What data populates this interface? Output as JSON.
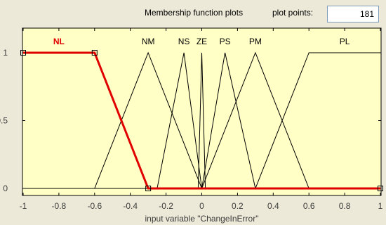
{
  "header": {
    "title": "Membership function plots",
    "plot_points_label": "plot points:",
    "plot_points_value": "181"
  },
  "colors": {
    "plot_bg": "#ffffc6",
    "line": "#000000",
    "selected": "#e00000",
    "window_bg": "#ece9d8"
  },
  "chart_data": {
    "type": "line",
    "xlabel": "input variable \"ChangeInError\"",
    "xlim": [
      -1,
      1
    ],
    "ylim": [
      0,
      1
    ],
    "x_ticks": [
      "-1",
      "-0.8",
      "-0.6",
      "-0.4",
      "-0.2",
      "0",
      "0.2",
      "0.4",
      "0.6",
      "0.8",
      "1"
    ],
    "y_ticks": [
      "0",
      "0.5",
      "1"
    ],
    "selected": "NL",
    "series": [
      {
        "name": "NL",
        "x": [
          -1,
          -0.6,
          -0.3,
          1
        ],
        "y": [
          1,
          1,
          0,
          0
        ]
      },
      {
        "name": "NM",
        "x": [
          -1,
          -0.6,
          -0.3,
          0,
          1
        ],
        "y": [
          0,
          0,
          1,
          0,
          0
        ]
      },
      {
        "name": "NS",
        "x": [
          -1,
          -0.25,
          -0.1,
          0,
          1
        ],
        "y": [
          0,
          0,
          1,
          0,
          0
        ]
      },
      {
        "name": "ZE",
        "x": [
          -1,
          -0.02,
          0,
          0.02,
          1
        ],
        "y": [
          0,
          0,
          1,
          0,
          0
        ]
      },
      {
        "name": "PS",
        "x": [
          -1,
          0,
          0.13,
          0.3,
          1
        ],
        "y": [
          0,
          0,
          1,
          0,
          0
        ]
      },
      {
        "name": "PM",
        "x": [
          -1,
          0,
          0.3,
          0.6,
          1
        ],
        "y": [
          0,
          0,
          1,
          0,
          0
        ]
      },
      {
        "name": "PL",
        "x": [
          -1,
          0.3,
          0.6,
          1
        ],
        "y": [
          0,
          0,
          1,
          1
        ]
      }
    ]
  }
}
